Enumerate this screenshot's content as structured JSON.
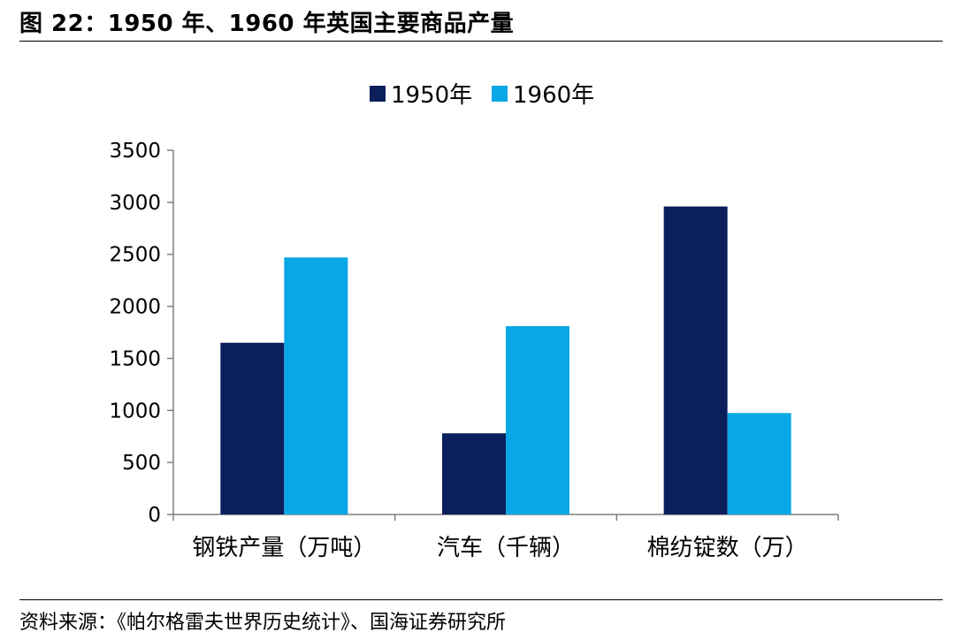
{
  "header": {
    "title": "图 22：1950 年、1960 年英国主要商品产量"
  },
  "footer": {
    "source": "资料来源：《帕尔格雷夫世界历史统计》、国海证券研究所"
  },
  "chart_data": {
    "type": "bar",
    "categories": [
      "钢铁产量（万吨）",
      "汽车（千辆）",
      "棉纺锭数（万）"
    ],
    "series": [
      {
        "name": "1950年",
        "values": [
          1650,
          780,
          2960
        ],
        "color": "#0b1f5c"
      },
      {
        "name": "1960年",
        "values": [
          2470,
          1810,
          975
        ],
        "color": "#0aa7e6"
      }
    ],
    "ylim": [
      0,
      3500
    ],
    "yticks": [
      "0",
      "500",
      "1000",
      "1500",
      "2000",
      "2500",
      "3000",
      "3500"
    ],
    "grid": false,
    "legend": "top-center"
  }
}
